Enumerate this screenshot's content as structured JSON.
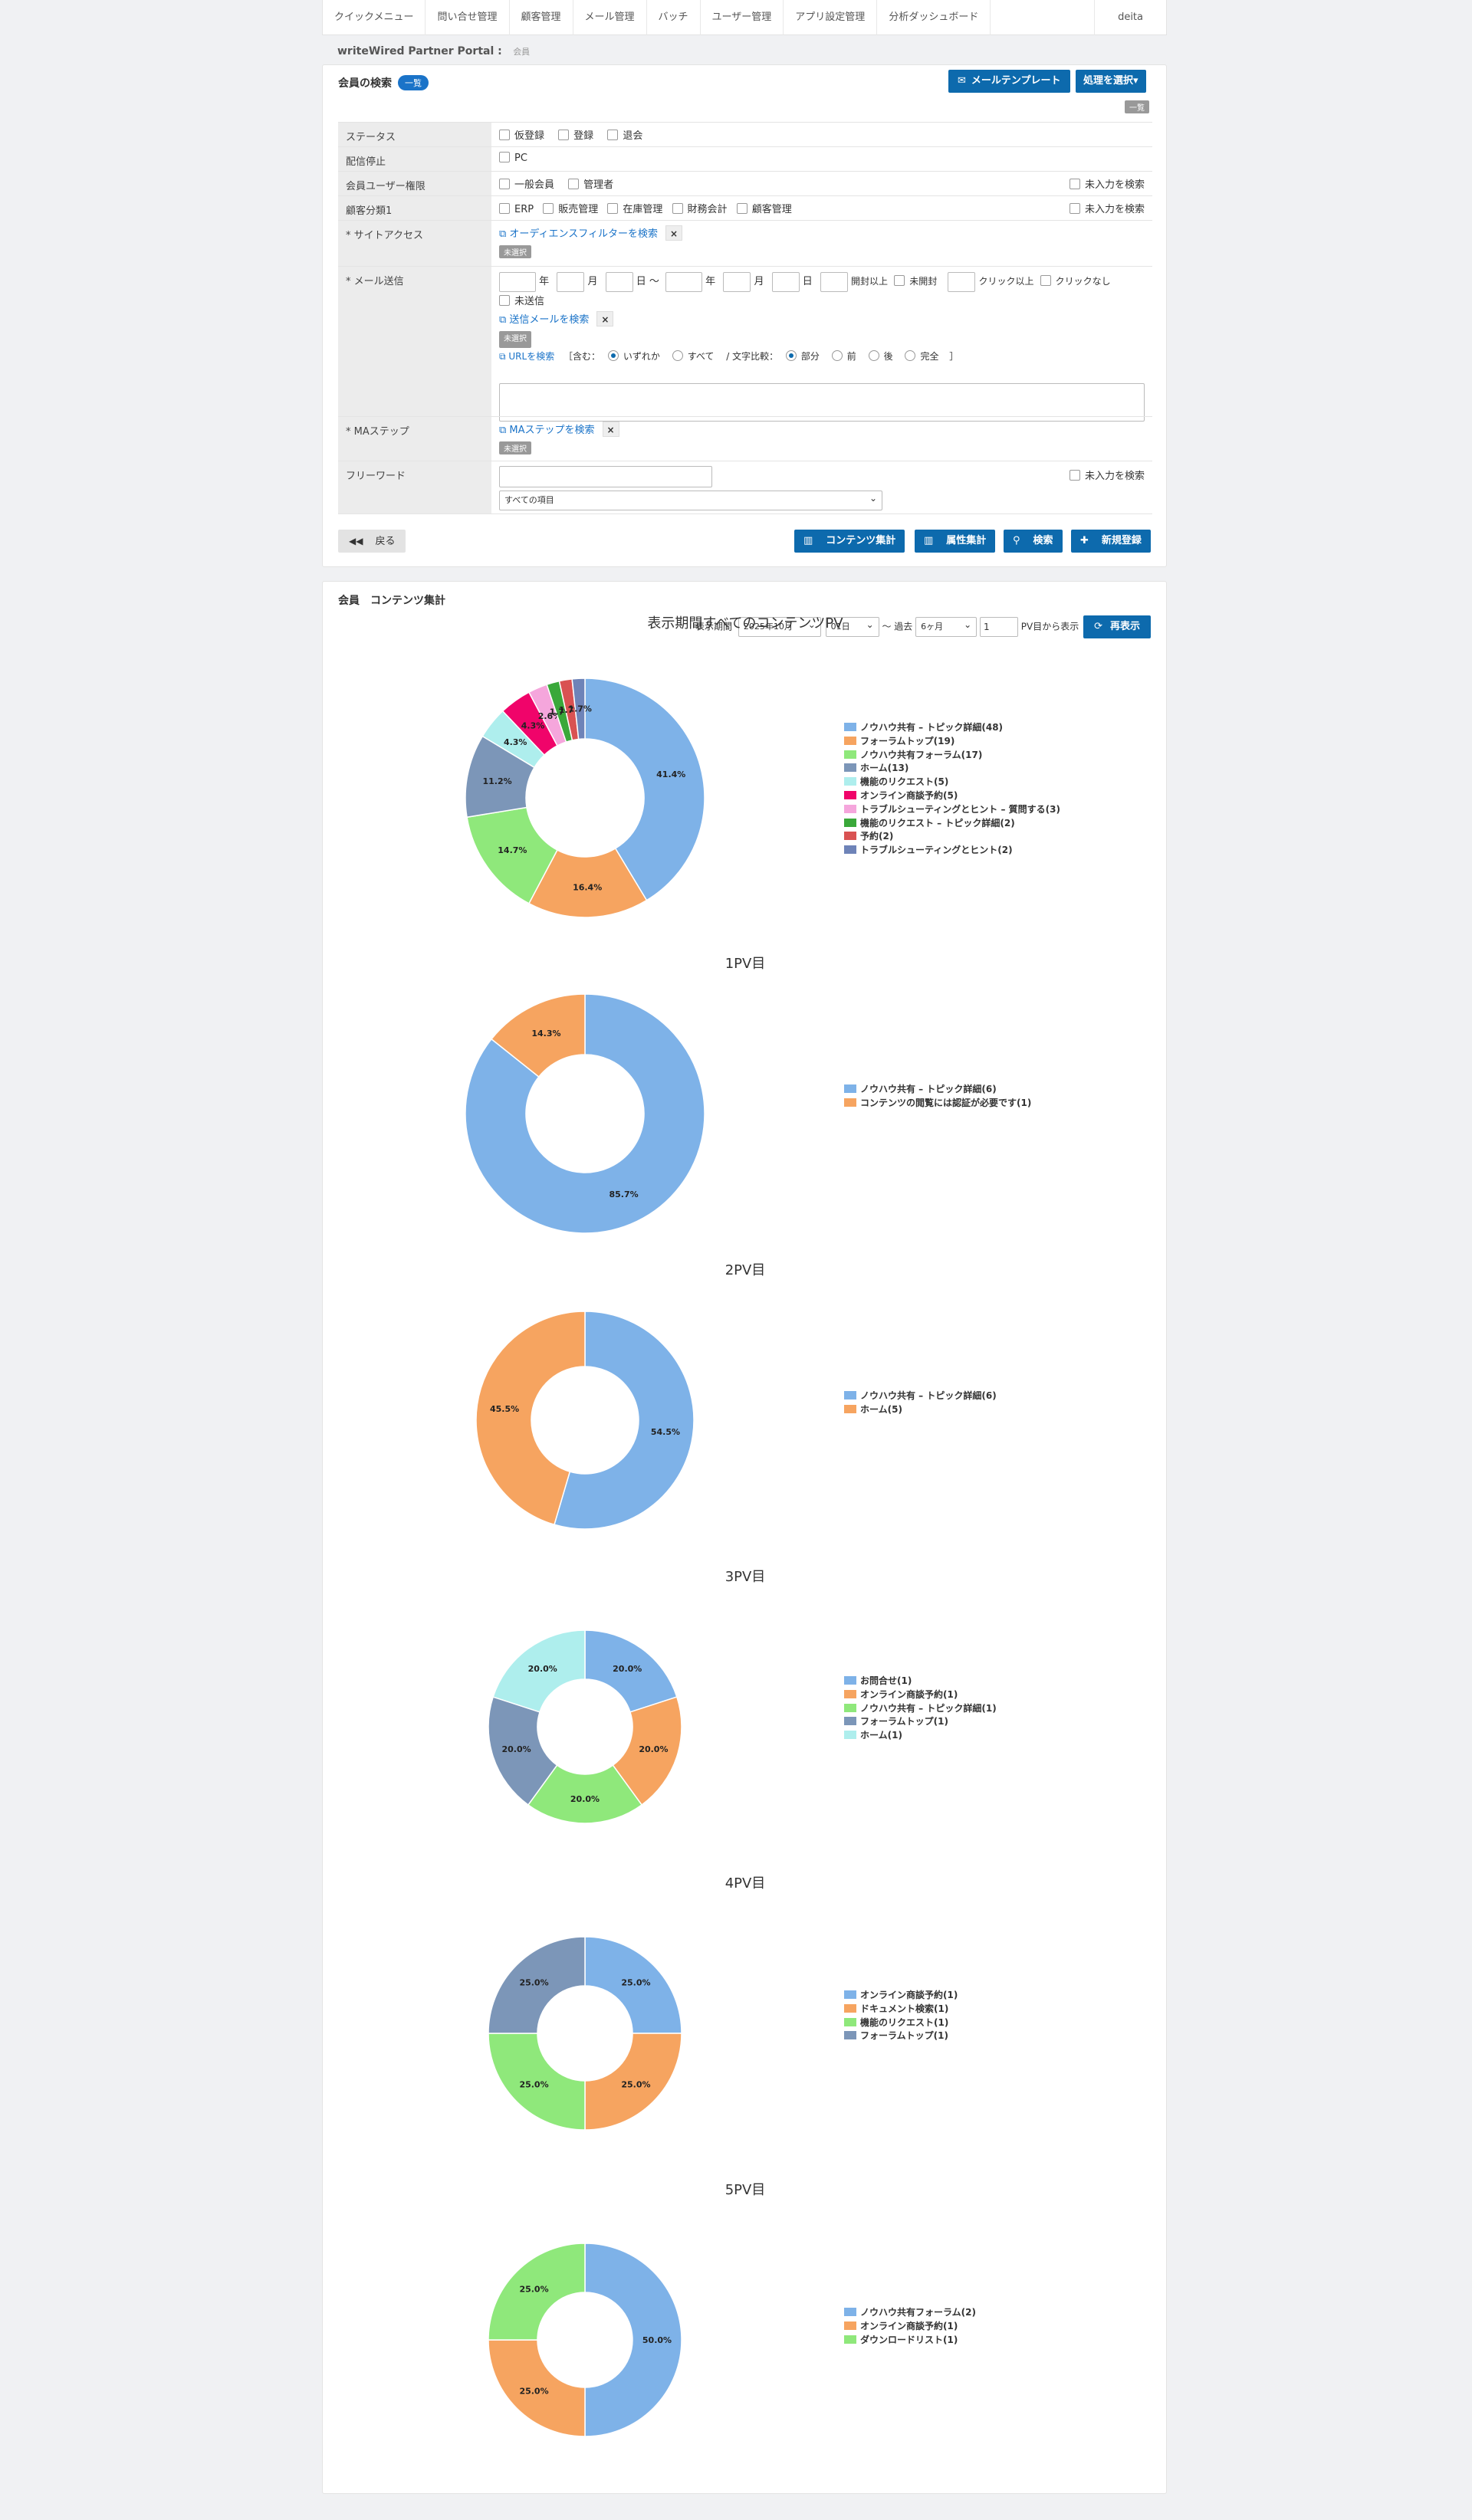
{
  "nav": {
    "items": [
      "クイックメニュー",
      "問い合せ管理",
      "顧客管理",
      "メール管理",
      "バッチ",
      "ユーザー管理",
      "アプリ設定管理",
      "分析ダッシュボード"
    ],
    "user": "deita"
  },
  "breadcrumb": {
    "portal": "writeWired Partner Portal :",
    "page": "会員"
  },
  "search_panel": {
    "title": "会員の検索",
    "badge": "一覧",
    "mail_template_btn": "メールテンプレート",
    "process_btn": "処理を選択▾",
    "mini_badge": "一覧",
    "rows": {
      "status": {
        "label": "ステータス",
        "options": [
          "仮登録",
          "登録",
          "退会"
        ]
      },
      "unsub": {
        "label": "配信停止",
        "options": [
          "PC"
        ]
      },
      "role": {
        "label": "会員ユーザー権限",
        "options": [
          "一般会員",
          "管理者"
        ],
        "empty": "未入力を検索"
      },
      "category": {
        "label": "顧客分類1",
        "options": [
          "ERP",
          "販売管理",
          "在庫管理",
          "財務会計",
          "顧客管理"
        ],
        "empty": "未入力を検索"
      },
      "site": {
        "label": "* サイトアクセス",
        "link": "オーディエンスフィルターを検索",
        "unset": "未選択"
      },
      "mail": {
        "label": "* メール送信",
        "year": "年",
        "month": "月",
        "day_to": "日 〜",
        "year2": "年",
        "month2": "月",
        "day2": "日",
        "open_more": "開封以上",
        "not_open": "未開封",
        "click_more": "クリック以上",
        "no_click": "クリックなし",
        "not_sent": "未送信",
        "mail_link": "送信メールを検索",
        "unset": "未選択",
        "url_link": "URLを検索",
        "contains": "［含む：",
        "any": "いずれか",
        "all": "すべて",
        "compare": "/ 文字比較：",
        "partial": "部分",
        "front": "前",
        "back": "後",
        "exact": "完全",
        "close": "］"
      },
      "ma": {
        "label": "* MAステップ",
        "link": "MAステップを検索",
        "unset": "未選択"
      },
      "free": {
        "label": "フリーワード",
        "select": "すべての項目",
        "empty": "未入力を検索"
      }
    },
    "back_btn": "戻る",
    "buttons": [
      "コンテンツ集計",
      "属性集計",
      "検索",
      "新規登録"
    ]
  },
  "content_panel": {
    "title": "会員　コンテンツ集計",
    "period_label": "表示期間",
    "month_select": "2025年10月",
    "day_select": "01日",
    "past_label": "〜 過去",
    "range_select": "6ヶ月",
    "pv_input": "1",
    "pv_label": "PV目から表示",
    "refresh_btn": "再表示"
  },
  "colors": [
    "#7eb2e8",
    "#f6a460",
    "#8fe87b",
    "#7c96b8",
    "#aeeeed",
    "#f0046a",
    "#f5a6dc",
    "#3aa83a",
    "#d95252",
    "#6e83b8"
  ],
  "chart_data": [
    {
      "type": "pie",
      "title": "表示期間すべてのコンテンツPV",
      "categories": [
        "ノウハウ共有 – トピック詳細(48)",
        "フォーラムトップ(19)",
        "ノウハウ共有フォーラム(17)",
        "ホーム(13)",
        "機能のリクエスト(5)",
        "オンライン商談予約(5)",
        "トラブルシューティングとヒント – 質問する(3)",
        "機能のリクエスト – トピック詳細(2)",
        "予約(2)",
        "トラブルシューティングとヒント(2)"
      ],
      "values": [
        48,
        19,
        17,
        13,
        5,
        5,
        3,
        2,
        2,
        2
      ],
      "labels": [
        "41.4%",
        "16.4%",
        "14.7%",
        "11.2%",
        "4.3%",
        "4.3%",
        "2.6%",
        "1.7%",
        "1.7%",
        "1.7%"
      ]
    },
    {
      "type": "pie",
      "title": "1PV目",
      "categories": [
        "ノウハウ共有 – トピック詳細(6)",
        "コンテンツの閲覧には認証が必要です(1)"
      ],
      "values": [
        6,
        1
      ],
      "labels": [
        "85.7%",
        "14.3%"
      ]
    },
    {
      "type": "pie",
      "title": "2PV目",
      "categories": [
        "ノウハウ共有 – トピック詳細(6)",
        "ホーム(5)"
      ],
      "values": [
        6,
        5
      ],
      "labels": [
        "54.5%",
        "45.5%"
      ]
    },
    {
      "type": "pie",
      "title": "3PV目",
      "categories": [
        "お問合せ(1)",
        "オンライン商談予約(1)",
        "ノウハウ共有 – トピック詳細(1)",
        "フォーラムトップ(1)",
        "ホーム(1)"
      ],
      "values": [
        1,
        1,
        1,
        1,
        1
      ],
      "labels": [
        "20.0%",
        "20.0%",
        "20.0%",
        "20.0%",
        "20.0%"
      ]
    },
    {
      "type": "pie",
      "title": "4PV目",
      "categories": [
        "オンライン商談予約(1)",
        "ドキュメント検索(1)",
        "機能のリクエスト(1)",
        "フォーラムトップ(1)"
      ],
      "values": [
        1,
        1,
        1,
        1
      ],
      "labels": [
        "25.0%",
        "25.0%",
        "25.0%",
        "25.0%"
      ]
    },
    {
      "type": "pie",
      "title": "5PV目",
      "categories": [
        "ノウハウ共有フォーラム(2)",
        "オンライン商談予約(1)",
        "ダウンロードリスト(1)"
      ],
      "values": [
        2,
        1,
        1
      ],
      "labels": [
        "50.0%",
        "25.0%",
        "25.0%"
      ]
    }
  ]
}
